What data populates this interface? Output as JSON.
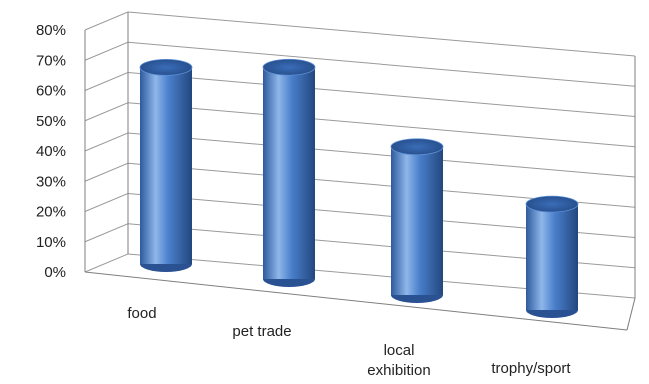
{
  "chart_data": {
    "type": "bar",
    "style": "3d-cylinder",
    "categories": [
      "food",
      "pet trade",
      "local exhibition",
      "trophy/sport"
    ],
    "values": [
      65,
      70,
      49,
      35
    ],
    "ylim": [
      0,
      80
    ],
    "yticks": [
      "0%",
      "10%",
      "20%",
      "30%",
      "40%",
      "50%",
      "60%",
      "70%",
      "80%"
    ],
    "grid": true,
    "legend": "none",
    "colors": {
      "bar_light": "#8fb7ea",
      "bar_mid": "#4a7fcb",
      "bar_dark": "#22477e",
      "bar_top": "#2f5fa8",
      "grid": "#9a9a9a",
      "axis": "#7f7f7f"
    }
  }
}
